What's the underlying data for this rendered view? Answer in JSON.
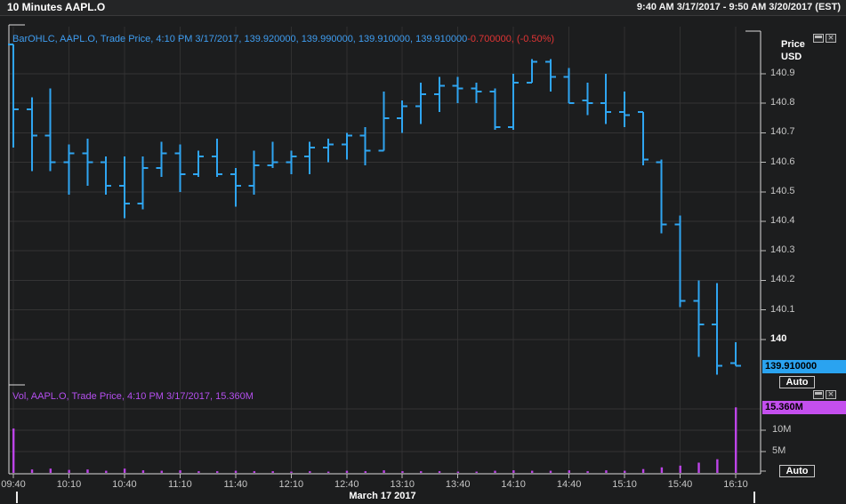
{
  "window": {
    "title": "10 Minutes AAPL.O",
    "range_label": "9:40 AM 3/17/2017 - 9:50 AM 3/20/2017 (EST)"
  },
  "price_pane": {
    "legend_blue": "BarOHLC, AAPL.O, Trade Price, 4:10 PM 3/17/2017, 139.920000, 139.990000, 139.910000, 139.910000",
    "legend_red": "-0.700000, (-0.50%)",
    "axis_title_1": "Price",
    "axis_title_2": "USD",
    "ticks": [
      {
        "label": "140.9",
        "value": 140.9
      },
      {
        "label": "140.8",
        "value": 140.8
      },
      {
        "label": "140.7",
        "value": 140.7
      },
      {
        "label": "140.6",
        "value": 140.6
      },
      {
        "label": "140.5",
        "value": 140.5
      },
      {
        "label": "140.4",
        "value": 140.4
      },
      {
        "label": "140.3",
        "value": 140.3
      },
      {
        "label": "140.2",
        "value": 140.2
      },
      {
        "label": "140.1",
        "value": 140.1
      },
      {
        "label": "140",
        "value": 140.0
      }
    ],
    "current_label": "139.910000",
    "auto_label": "Auto"
  },
  "volume_pane": {
    "legend": "Vol, AAPL.O, Trade Price, 4:10 PM 3/17/2017, 15.360M",
    "ticks": [
      {
        "label": "10M",
        "value": 10
      },
      {
        "label": "5M",
        "value": 5
      }
    ],
    "current_label": "15.360M",
    "auto_label": "Auto"
  },
  "time_axis": {
    "labels": [
      "09:40",
      "10:10",
      "10:40",
      "11:10",
      "11:40",
      "12:10",
      "12:40",
      "13:10",
      "13:40",
      "14:10",
      "14:40",
      "15:10",
      "15:40",
      "16:10"
    ],
    "date_label": "March 17 2017"
  },
  "colors": {
    "bar_blue": "#2fa5f1",
    "volume_magenta": "#bd44e8",
    "grid": "#303030",
    "frame": "#dcdcdc",
    "axis_tick": "#bbbbbb",
    "legend_blue": "#3f9df0",
    "legend_red": "#e03434",
    "legend_magenta": "#b44fee",
    "price_badge_bg": "#2aa3f0",
    "volume_badge_bg": "#c44fee"
  },
  "chart_data": {
    "type": "ohlc-with-volume",
    "symbol": "AAPL.O",
    "interval": "10 Minutes",
    "session_date": "March 17 2017",
    "price_axis": {
      "ticks": [
        140.0,
        140.1,
        140.2,
        140.3,
        140.4,
        140.5,
        140.6,
        140.7,
        140.8,
        140.9
      ],
      "current_price": 139.91
    },
    "volume_axis": {
      "ticks_millions": [
        5,
        10,
        15
      ],
      "current_volume_millions": 15.36
    },
    "last_bar_legend": {
      "open": 139.92,
      "high": 139.99,
      "low": 139.91,
      "close": 139.91,
      "change": -0.7,
      "change_pct": -0.5
    },
    "volume_unit": "millions",
    "bars": [
      {
        "t": "09:40",
        "o": 141.0,
        "h": 141.0,
        "l": 140.65,
        "c": 140.78,
        "v": 10.4
      },
      {
        "t": "09:50",
        "o": 140.78,
        "h": 140.82,
        "l": 140.57,
        "c": 140.69,
        "v": 0.8
      },
      {
        "t": "10:00",
        "o": 140.69,
        "h": 140.85,
        "l": 140.57,
        "c": 140.6,
        "v": 1.0
      },
      {
        "t": "10:10",
        "o": 140.6,
        "h": 140.66,
        "l": 140.49,
        "c": 140.63,
        "v": 0.7
      },
      {
        "t": "10:20",
        "o": 140.63,
        "h": 140.68,
        "l": 140.52,
        "c": 140.6,
        "v": 0.8
      },
      {
        "t": "10:30",
        "o": 140.6,
        "h": 140.62,
        "l": 140.49,
        "c": 140.52,
        "v": 0.5
      },
      {
        "t": "10:40",
        "o": 140.52,
        "h": 140.62,
        "l": 140.41,
        "c": 140.46,
        "v": 1.0
      },
      {
        "t": "10:50",
        "o": 140.46,
        "h": 140.62,
        "l": 140.44,
        "c": 140.58,
        "v": 0.6
      },
      {
        "t": "11:00",
        "o": 140.58,
        "h": 140.67,
        "l": 140.55,
        "c": 140.63,
        "v": 0.5
      },
      {
        "t": "11:10",
        "o": 140.63,
        "h": 140.66,
        "l": 140.5,
        "c": 140.56,
        "v": 0.6
      },
      {
        "t": "11:20",
        "o": 140.56,
        "h": 140.64,
        "l": 140.55,
        "c": 140.62,
        "v": 0.4
      },
      {
        "t": "11:30",
        "o": 140.62,
        "h": 140.68,
        "l": 140.55,
        "c": 140.56,
        "v": 0.4
      },
      {
        "t": "11:40",
        "o": 140.56,
        "h": 140.58,
        "l": 140.45,
        "c": 140.52,
        "v": 0.5
      },
      {
        "t": "11:50",
        "o": 140.52,
        "h": 140.64,
        "l": 140.49,
        "c": 140.59,
        "v": 0.4
      },
      {
        "t": "12:00",
        "o": 140.59,
        "h": 140.67,
        "l": 140.58,
        "c": 140.6,
        "v": 0.4
      },
      {
        "t": "12:10",
        "o": 140.6,
        "h": 140.64,
        "l": 140.56,
        "c": 140.62,
        "v": 0.3
      },
      {
        "t": "12:20",
        "o": 140.62,
        "h": 140.67,
        "l": 140.56,
        "c": 140.65,
        "v": 0.4
      },
      {
        "t": "12:30",
        "o": 140.65,
        "h": 140.68,
        "l": 140.6,
        "c": 140.66,
        "v": 0.3
      },
      {
        "t": "12:40",
        "o": 140.66,
        "h": 140.7,
        "l": 140.61,
        "c": 140.69,
        "v": 0.5
      },
      {
        "t": "12:50",
        "o": 140.69,
        "h": 140.72,
        "l": 140.59,
        "c": 140.64,
        "v": 0.4
      },
      {
        "t": "13:00",
        "o": 140.64,
        "h": 140.84,
        "l": 140.64,
        "c": 140.75,
        "v": 0.6
      },
      {
        "t": "13:10",
        "o": 140.75,
        "h": 140.81,
        "l": 140.7,
        "c": 140.79,
        "v": 0.4
      },
      {
        "t": "13:20",
        "o": 140.79,
        "h": 140.87,
        "l": 140.73,
        "c": 140.83,
        "v": 0.4
      },
      {
        "t": "13:30",
        "o": 140.83,
        "h": 140.89,
        "l": 140.77,
        "c": 140.86,
        "v": 0.4
      },
      {
        "t": "13:40",
        "o": 140.86,
        "h": 140.89,
        "l": 140.8,
        "c": 140.85,
        "v": 0.3
      },
      {
        "t": "13:50",
        "o": 140.85,
        "h": 140.87,
        "l": 140.8,
        "c": 140.84,
        "v": 0.3
      },
      {
        "t": "14:00",
        "o": 140.84,
        "h": 140.85,
        "l": 140.71,
        "c": 140.72,
        "v": 0.5
      },
      {
        "t": "14:10",
        "o": 140.72,
        "h": 140.9,
        "l": 140.71,
        "c": 140.87,
        "v": 0.6
      },
      {
        "t": "14:20",
        "o": 140.87,
        "h": 140.95,
        "l": 140.87,
        "c": 140.94,
        "v": 0.5
      },
      {
        "t": "14:30",
        "o": 140.94,
        "h": 140.95,
        "l": 140.84,
        "c": 140.89,
        "v": 0.5
      },
      {
        "t": "14:40",
        "o": 140.89,
        "h": 140.92,
        "l": 140.8,
        "c": 140.8,
        "v": 0.6
      },
      {
        "t": "14:50",
        "o": 140.81,
        "h": 140.87,
        "l": 140.76,
        "c": 140.8,
        "v": 0.4
      },
      {
        "t": "15:00",
        "o": 140.8,
        "h": 140.9,
        "l": 140.73,
        "c": 140.77,
        "v": 0.6
      },
      {
        "t": "15:10",
        "o": 140.77,
        "h": 140.84,
        "l": 140.72,
        "c": 140.76,
        "v": 0.5
      },
      {
        "t": "15:20",
        "o": 140.77,
        "h": 140.77,
        "l": 140.59,
        "c": 140.61,
        "v": 0.9
      },
      {
        "t": "15:30",
        "o": 140.6,
        "h": 140.61,
        "l": 140.36,
        "c": 140.39,
        "v": 1.3
      },
      {
        "t": "15:40",
        "o": 140.39,
        "h": 140.42,
        "l": 140.11,
        "c": 140.13,
        "v": 1.7
      },
      {
        "t": "15:50",
        "o": 140.13,
        "h": 140.2,
        "l": 139.94,
        "c": 140.05,
        "v": 2.4
      },
      {
        "t": "16:00",
        "o": 140.05,
        "h": 140.19,
        "l": 139.88,
        "c": 139.91,
        "v": 3.2
      },
      {
        "t": "16:10",
        "o": 139.92,
        "h": 139.99,
        "l": 139.91,
        "c": 139.91,
        "v": 15.36
      }
    ]
  }
}
